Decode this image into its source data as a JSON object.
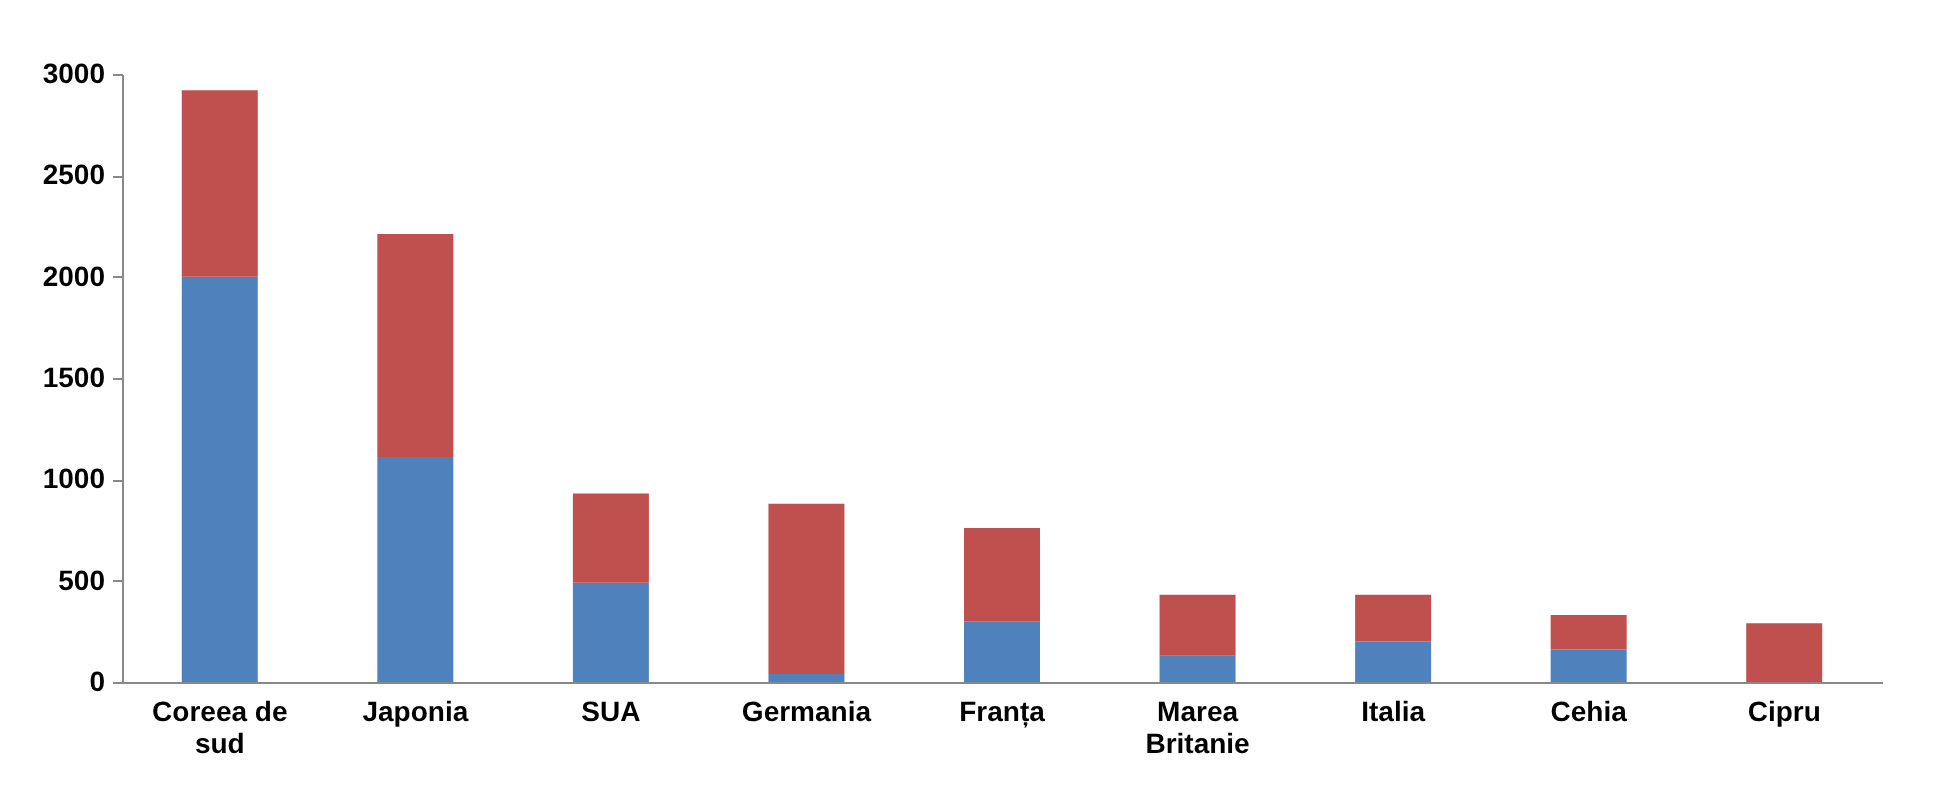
{
  "chart_data": {
    "type": "bar",
    "stacked": true,
    "categories": [
      "Coreea de sud",
      "Japonia",
      "SUA",
      "Germania",
      "Franța",
      "Marea Britanie",
      "Italia",
      "Cehia",
      "Cipru"
    ],
    "series": [
      {
        "color": "#4f81bd",
        "values": [
          2000,
          1110,
          490,
          40,
          300,
          130,
          200,
          160,
          0
        ]
      },
      {
        "color": "#c0504d",
        "values": [
          920,
          1100,
          440,
          840,
          460,
          300,
          230,
          170,
          290
        ]
      }
    ],
    "ylim": [
      0,
      3000
    ],
    "yticks": [
      0,
      500,
      1000,
      1500,
      2000,
      2500,
      3000
    ],
    "grid": false,
    "legend": false
  }
}
